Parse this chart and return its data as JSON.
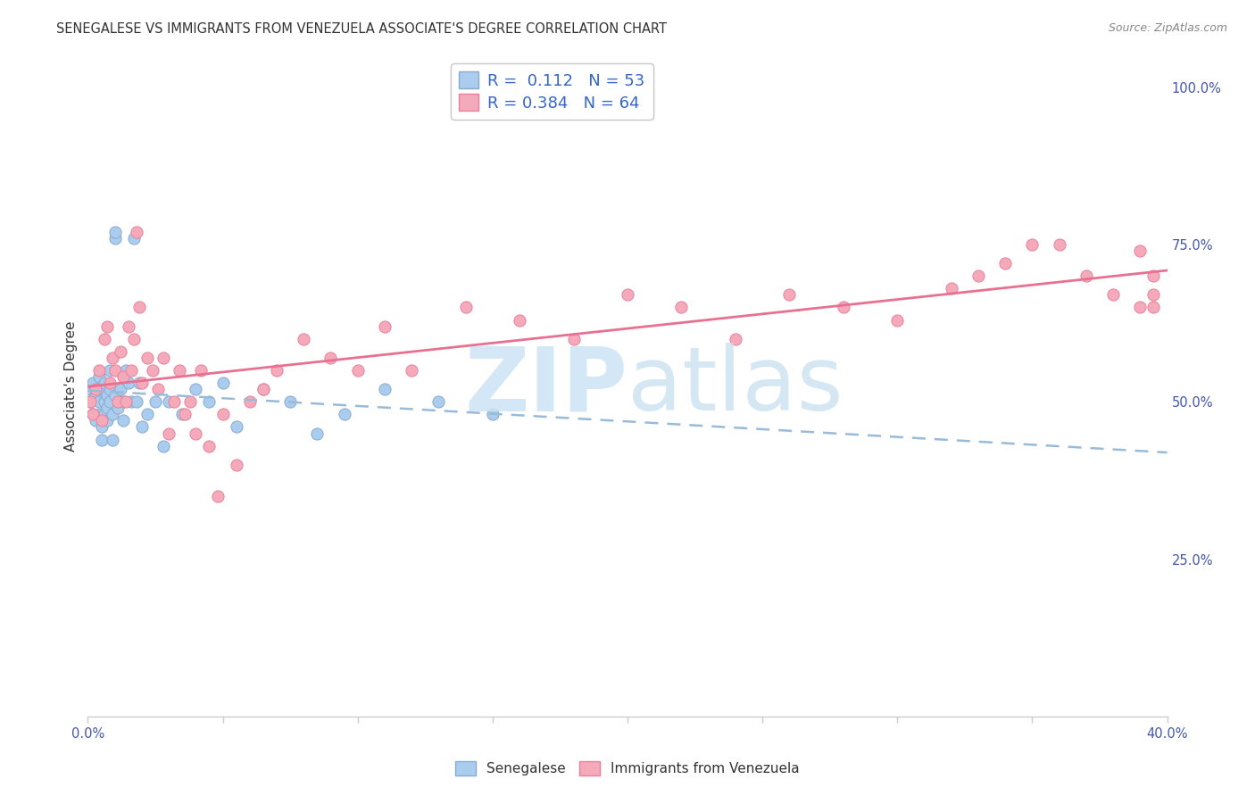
{
  "title": "SENEGALESE VS IMMIGRANTS FROM VENEZUELA ASSOCIATE'S DEGREE CORRELATION CHART",
  "source": "Source: ZipAtlas.com",
  "ylabel": "Associate's Degree",
  "right_yticklabels": [
    "25.0%",
    "50.0%",
    "75.0%",
    "100.0%"
  ],
  "right_ytick_vals": [
    0.25,
    0.5,
    0.75,
    1.0
  ],
  "blue_scatter_color": "#aaccee",
  "pink_scatter_color": "#f5aabb",
  "blue_edge_color": "#88aacc",
  "pink_edge_color": "#e88099",
  "blue_line_color": "#99bbd8",
  "pink_line_color": "#e87090",
  "background_color": "#ffffff",
  "grid_color": "#dddddd",
  "title_fontsize": 10.5,
  "source_fontsize": 9,
  "axis_label_fontsize": 11,
  "tick_fontsize": 10.5,
  "legend_fontsize": 13,
  "watermark_zip_color": "#cce4f5",
  "watermark_atlas_color": "#c8dff0",
  "R_blue": 0.112,
  "N_blue": 53,
  "R_pink": 0.384,
  "N_pink": 64,
  "xlim": [
    0.0,
    0.4
  ],
  "ylim": [
    0.0,
    1.05
  ],
  "senegalese_x": [
    0.001,
    0.001,
    0.002,
    0.002,
    0.003,
    0.003,
    0.004,
    0.004,
    0.004,
    0.005,
    0.005,
    0.005,
    0.006,
    0.006,
    0.006,
    0.007,
    0.007,
    0.007,
    0.008,
    0.008,
    0.008,
    0.009,
    0.009,
    0.01,
    0.01,
    0.01,
    0.011,
    0.012,
    0.013,
    0.013,
    0.014,
    0.015,
    0.016,
    0.017,
    0.018,
    0.019,
    0.02,
    0.022,
    0.025,
    0.028,
    0.03,
    0.035,
    0.04,
    0.045,
    0.05,
    0.055,
    0.065,
    0.075,
    0.085,
    0.095,
    0.11,
    0.13,
    0.15
  ],
  "senegalese_y": [
    0.5,
    0.52,
    0.48,
    0.53,
    0.47,
    0.51,
    0.54,
    0.5,
    0.48,
    0.52,
    0.46,
    0.44,
    0.53,
    0.5,
    0.48,
    0.51,
    0.49,
    0.47,
    0.55,
    0.52,
    0.5,
    0.48,
    0.44,
    0.76,
    0.77,
    0.51,
    0.49,
    0.52,
    0.5,
    0.47,
    0.55,
    0.53,
    0.5,
    0.76,
    0.5,
    0.53,
    0.46,
    0.48,
    0.5,
    0.43,
    0.5,
    0.48,
    0.52,
    0.5,
    0.53,
    0.46,
    0.52,
    0.5,
    0.45,
    0.48,
    0.52,
    0.5,
    0.48
  ],
  "venezuela_x": [
    0.001,
    0.002,
    0.003,
    0.004,
    0.005,
    0.006,
    0.007,
    0.008,
    0.009,
    0.01,
    0.011,
    0.012,
    0.013,
    0.014,
    0.015,
    0.016,
    0.017,
    0.018,
    0.019,
    0.02,
    0.022,
    0.024,
    0.026,
    0.028,
    0.03,
    0.032,
    0.034,
    0.036,
    0.038,
    0.04,
    0.042,
    0.045,
    0.048,
    0.05,
    0.055,
    0.06,
    0.065,
    0.07,
    0.08,
    0.09,
    0.1,
    0.11,
    0.12,
    0.14,
    0.16,
    0.18,
    0.2,
    0.22,
    0.24,
    0.26,
    0.28,
    0.3,
    0.32,
    0.33,
    0.34,
    0.35,
    0.36,
    0.37,
    0.38,
    0.39,
    0.39,
    0.395,
    0.395,
    0.395
  ],
  "venezuela_y": [
    0.5,
    0.48,
    0.52,
    0.55,
    0.47,
    0.6,
    0.62,
    0.53,
    0.57,
    0.55,
    0.5,
    0.58,
    0.54,
    0.5,
    0.62,
    0.55,
    0.6,
    0.77,
    0.65,
    0.53,
    0.57,
    0.55,
    0.52,
    0.57,
    0.45,
    0.5,
    0.55,
    0.48,
    0.5,
    0.45,
    0.55,
    0.43,
    0.35,
    0.48,
    0.4,
    0.5,
    0.52,
    0.55,
    0.6,
    0.57,
    0.55,
    0.62,
    0.55,
    0.65,
    0.63,
    0.6,
    0.67,
    0.65,
    0.6,
    0.67,
    0.65,
    0.63,
    0.68,
    0.7,
    0.72,
    0.75,
    0.75,
    0.7,
    0.67,
    0.74,
    0.65,
    0.7,
    0.67,
    0.65
  ]
}
